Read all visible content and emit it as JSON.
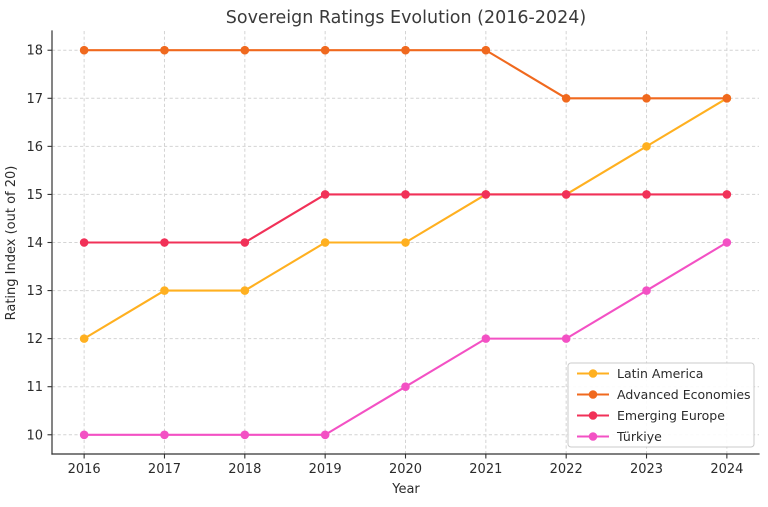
{
  "chart_data": {
    "type": "line",
    "title": "Sovereign Ratings Evolution (2016-2024)",
    "xlabel": "Year",
    "ylabel": "Rating Index (out of 20)",
    "x": [
      2016,
      2017,
      2018,
      2019,
      2020,
      2021,
      2022,
      2023,
      2024
    ],
    "xticks": [
      "2016",
      "2017",
      "2018",
      "2019",
      "2020",
      "2021",
      "2022",
      "2023",
      "2024"
    ],
    "yticks": [
      "10",
      "11",
      "12",
      "13",
      "14",
      "15",
      "16",
      "17",
      "18"
    ],
    "xlim": [
      2015.6,
      2024.4
    ],
    "ylim": [
      9.6,
      18.4
    ],
    "grid": true,
    "marker": "o",
    "legend_position": "lower right",
    "series": [
      {
        "name": "Latin America",
        "color": "#FFB020",
        "values": [
          12,
          13,
          13,
          14,
          14,
          15,
          15,
          16,
          17
        ]
      },
      {
        "name": "Advanced Economies",
        "color": "#F0691E",
        "values": [
          18,
          18,
          18,
          18,
          18,
          18,
          17,
          17,
          17
        ]
      },
      {
        "name": "Emerging Europe",
        "color": "#F13158",
        "values": [
          14,
          14,
          14,
          15,
          15,
          15,
          15,
          15,
          15
        ]
      },
      {
        "name": "Türkiye",
        "color": "#F351C4",
        "values": [
          10,
          10,
          10,
          10,
          11,
          12,
          12,
          13,
          14
        ]
      }
    ]
  },
  "style": {
    "grid_color": "#d4d4d4",
    "spine_color": "#333333",
    "tick_color": "#333333",
    "text_color": "#2b2b2b",
    "legend_border": "#cbcbcb",
    "legend_fill": "#ffffff",
    "background": "#ffffff"
  }
}
